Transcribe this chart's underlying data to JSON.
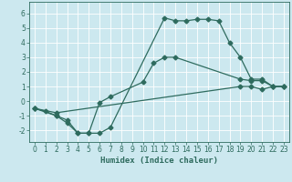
{
  "xlabel": "Humidex (Indice chaleur)",
  "bg_color": "#cce8ef",
  "grid_color": "#ffffff",
  "line_color": "#2e6b5e",
  "xlim": [
    -0.5,
    23.5
  ],
  "ylim": [
    -2.8,
    6.8
  ],
  "xticks": [
    0,
    1,
    2,
    3,
    4,
    5,
    6,
    7,
    8,
    9,
    10,
    11,
    12,
    13,
    14,
    15,
    16,
    17,
    18,
    19,
    20,
    21,
    22,
    23
  ],
  "yticks": [
    -2,
    -1,
    0,
    1,
    2,
    3,
    4,
    5,
    6
  ],
  "line1_x": [
    0,
    1,
    2,
    3,
    4,
    5,
    6,
    7,
    12,
    13,
    14,
    15,
    16,
    17,
    18,
    19,
    20,
    21,
    22,
    23
  ],
  "line1_y": [
    -0.5,
    -0.7,
    -1.0,
    -1.3,
    -2.2,
    -2.2,
    -2.2,
    -1.8,
    5.7,
    5.5,
    5.5,
    5.6,
    5.6,
    5.5,
    4.0,
    3.0,
    1.5,
    1.5,
    1.0,
    1.0
  ],
  "line2_x": [
    0,
    2,
    3,
    4,
    5,
    6,
    7,
    10,
    11,
    12,
    13,
    19,
    20,
    21,
    22,
    23
  ],
  "line2_y": [
    -0.5,
    -1.0,
    -1.5,
    -2.2,
    -2.2,
    -0.1,
    0.3,
    1.3,
    2.6,
    3.0,
    3.0,
    1.5,
    1.4,
    1.4,
    1.0,
    1.0
  ],
  "line3_x": [
    0,
    2,
    19,
    20,
    21,
    22,
    23
  ],
  "line3_y": [
    -0.5,
    -0.8,
    1.0,
    1.0,
    0.8,
    1.0,
    1.0
  ]
}
